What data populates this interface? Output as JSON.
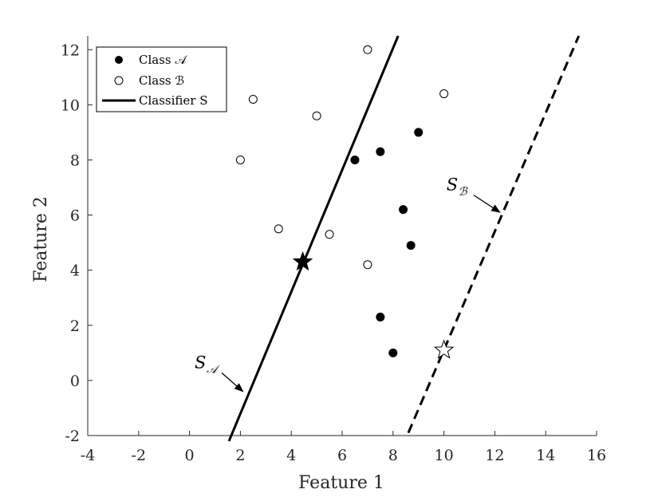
{
  "chart_data": {
    "type": "scatter",
    "xlabel": "Feature 1",
    "ylabel": "Feature 2",
    "xlim": [
      -4,
      16
    ],
    "ylim": [
      -2,
      12.5
    ],
    "xticks": [
      "-4",
      "-2",
      "0",
      "2",
      "4",
      "6",
      "8",
      "10",
      "12",
      "14",
      "16"
    ],
    "yticks": [
      "-2",
      "0",
      "2",
      "4",
      "6",
      "8",
      "10",
      "12"
    ],
    "grid": false,
    "legend_position": "top-left",
    "legend": [
      {
        "label": "Class 𝒜",
        "marker": "filled-circle"
      },
      {
        "label": "Class ℬ",
        "marker": "open-circle"
      },
      {
        "label": "Classifier S",
        "marker": "solid-line"
      }
    ],
    "series": [
      {
        "name": "Class 𝒜",
        "marker": "filled-circle",
        "color": "#000000",
        "points": [
          [
            6.5,
            8.0
          ],
          [
            7.5,
            8.3
          ],
          [
            9.0,
            9.0
          ],
          [
            8.4,
            6.2
          ],
          [
            8.7,
            4.9
          ],
          [
            7.5,
            2.3
          ],
          [
            8.0,
            1.0
          ]
        ]
      },
      {
        "name": "Class ℬ",
        "marker": "open-circle",
        "color": "#000000",
        "points": [
          [
            7.0,
            12.0
          ],
          [
            2.5,
            10.2
          ],
          [
            5.0,
            9.6
          ],
          [
            10.0,
            10.4
          ],
          [
            2.0,
            8.0
          ],
          [
            3.5,
            5.5
          ],
          [
            5.5,
            5.3
          ],
          [
            7.0,
            4.2
          ]
        ]
      }
    ],
    "lines": [
      {
        "style": "solid",
        "from": [
          1.55,
          -2.2
        ],
        "to": [
          8.2,
          12.5
        ]
      },
      {
        "style": "dashed",
        "from": [
          8.6,
          -1.9
        ],
        "to": [
          15.3,
          12.5
        ]
      }
    ],
    "special_points": [
      {
        "marker": "filled-star",
        "point": [
          4.45,
          4.3
        ]
      },
      {
        "marker": "open-star",
        "point": [
          10.0,
          1.1
        ]
      }
    ],
    "annotations": [
      {
        "text": "S",
        "subscript": "𝒜",
        "text_at": [
          0.2,
          0.45
        ],
        "arrow_to": [
          2.1,
          -0.4
        ]
      },
      {
        "text": "S",
        "subscript": "ℬ",
        "text_at": [
          10.1,
          6.9
        ],
        "arrow_to": [
          12.2,
          6.1
        ]
      }
    ]
  }
}
